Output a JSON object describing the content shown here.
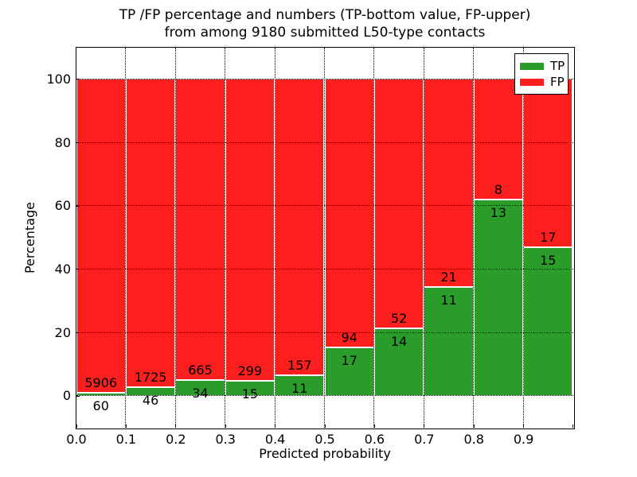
{
  "title": {
    "line1": "TP /FP percentage and numbers (TP-bottom value, FP-upper)",
    "line2": "from among 9180 submitted L50-type contacts"
  },
  "colors": {
    "tp_green": "#2a9c2a",
    "fp_red": "#fe1e1e",
    "grid": "#000000",
    "background": "#ffffff"
  },
  "legend": {
    "items": [
      {
        "label": "TP",
        "color": "#2a9c2a"
      },
      {
        "label": "FP",
        "color": "#fe1e1e"
      }
    ]
  },
  "chart_data": {
    "type": "bar",
    "stacked": true,
    "title": "TP /FP percentage and numbers (TP-bottom value, FP-upper) from among 9180 submitted L50-type contacts",
    "xlabel": "Predicted probability",
    "ylabel": "Percentage",
    "xlim": [
      0.0,
      1.0
    ],
    "ylim": [
      -10,
      110
    ],
    "x_tick_labels": [
      "0.0",
      "0.1",
      "0.2",
      "0.3",
      "0.4",
      "0.5",
      "0.6",
      "0.7",
      "0.8",
      "0.9"
    ],
    "y_ticks": [
      0,
      20,
      40,
      60,
      80,
      100
    ],
    "grid": "dotted, on top of bars",
    "legend_position": "upper right",
    "total_contacts": 9180,
    "series_note": "Each bin stacks TP% (green, bottom) and FP% (red, top) to 100%; labels show raw counts (TP below boundary, FP above boundary)",
    "bins": [
      {
        "range": [
          0.0,
          0.1
        ],
        "tp_count": 60,
        "fp_count": 5906,
        "tp_pct": 1.01,
        "fp_pct": 98.99
      },
      {
        "range": [
          0.1,
          0.2
        ],
        "tp_count": 46,
        "fp_count": 1725,
        "tp_pct": 2.6,
        "fp_pct": 97.4
      },
      {
        "range": [
          0.2,
          0.3
        ],
        "tp_count": 34,
        "fp_count": 665,
        "tp_pct": 4.86,
        "fp_pct": 95.14
      },
      {
        "range": [
          0.3,
          0.4
        ],
        "tp_count": 15,
        "fp_count": 299,
        "tp_pct": 4.78,
        "fp_pct": 95.22
      },
      {
        "range": [
          0.4,
          0.5
        ],
        "tp_count": 11,
        "fp_count": 157,
        "tp_pct": 6.55,
        "fp_pct": 93.45
      },
      {
        "range": [
          0.5,
          0.6
        ],
        "tp_count": 17,
        "fp_count": 94,
        "tp_pct": 15.32,
        "fp_pct": 84.68
      },
      {
        "range": [
          0.6,
          0.7
        ],
        "tp_count": 14,
        "fp_count": 52,
        "tp_pct": 21.21,
        "fp_pct": 78.79
      },
      {
        "range": [
          0.7,
          0.8
        ],
        "tp_count": 11,
        "fp_count": 21,
        "tp_pct": 34.38,
        "fp_pct": 65.62
      },
      {
        "range": [
          0.8,
          0.9
        ],
        "tp_count": 13,
        "fp_count": 8,
        "tp_pct": 61.9,
        "fp_pct": 38.1
      },
      {
        "range": [
          0.9,
          1.0
        ],
        "tp_count": 15,
        "fp_count": 17,
        "tp_pct": 46.88,
        "fp_pct": 53.12
      }
    ]
  }
}
